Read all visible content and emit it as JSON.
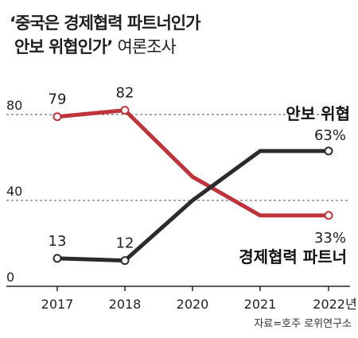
{
  "title": {
    "line1": "‘중국은 경제협력 파트너인가",
    "line2_main": "안보 위협인가’",
    "line2_sub": "여론조사"
  },
  "source": "자료=호주 로위연구소",
  "chart_data": {
    "type": "line",
    "title": "‘중국은 경제협력 파트너인가 안보 위협인가’ 여론조사",
    "categories": [
      "2017",
      "2018",
      "2020",
      "2021",
      "2022"
    ],
    "x_tick_labels": [
      "2017",
      "2018",
      "2020",
      "2021",
      "2022년"
    ],
    "y_tick_labels": [
      "80",
      "40",
      "0"
    ],
    "ylim": [
      0,
      100
    ],
    "grid": "dashed horizontal lines at 40 and 80",
    "series": [
      {
        "name": "안보 위협",
        "color": "#c0333a",
        "values": [
          79,
          82,
          51,
          33,
          33
        ],
        "labels": [
          "79",
          "82",
          "",
          "",
          "33%"
        ]
      },
      {
        "name": "경제협력 파트너",
        "color": "#2b2b2b",
        "values": [
          13,
          12,
          40,
          63,
          63
        ],
        "labels": [
          "13",
          "12",
          "",
          "",
          "63%"
        ]
      }
    ]
  }
}
